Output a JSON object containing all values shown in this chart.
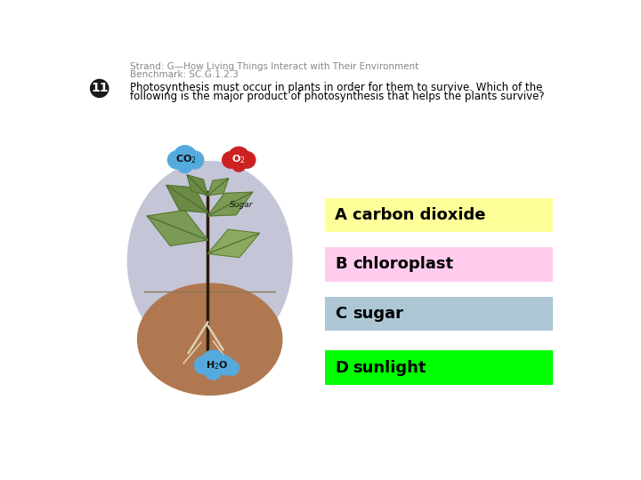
{
  "bg_color": "#ffffff",
  "header_line1": "Strand: G—How Living Things Interact with Their Environment",
  "header_line2": "Benchmark: SC.G.1.2.3",
  "question_number": "11",
  "question_text_line1": "Photosynthesis must occur in plants in order for them to survive. Which of the",
  "question_text_line2": "following is the major product of photosynthesis that helps the plants survive?",
  "options": [
    {
      "letter": "A",
      "text": "carbon dioxide",
      "bg_color": "#ffff99"
    },
    {
      "letter": "B",
      "text": "chloroplast",
      "bg_color": "#ffccee"
    },
    {
      "letter": "C",
      "text": "sugar",
      "bg_color": "#adc8d4"
    },
    {
      "letter": "D",
      "text": "sunlight",
      "bg_color": "#00ff00"
    }
  ],
  "header_color": "#888888",
  "question_color": "#000000",
  "option_text_color": "#000000",
  "number_bg": "#1a1a1a",
  "number_fg": "#ffffff"
}
